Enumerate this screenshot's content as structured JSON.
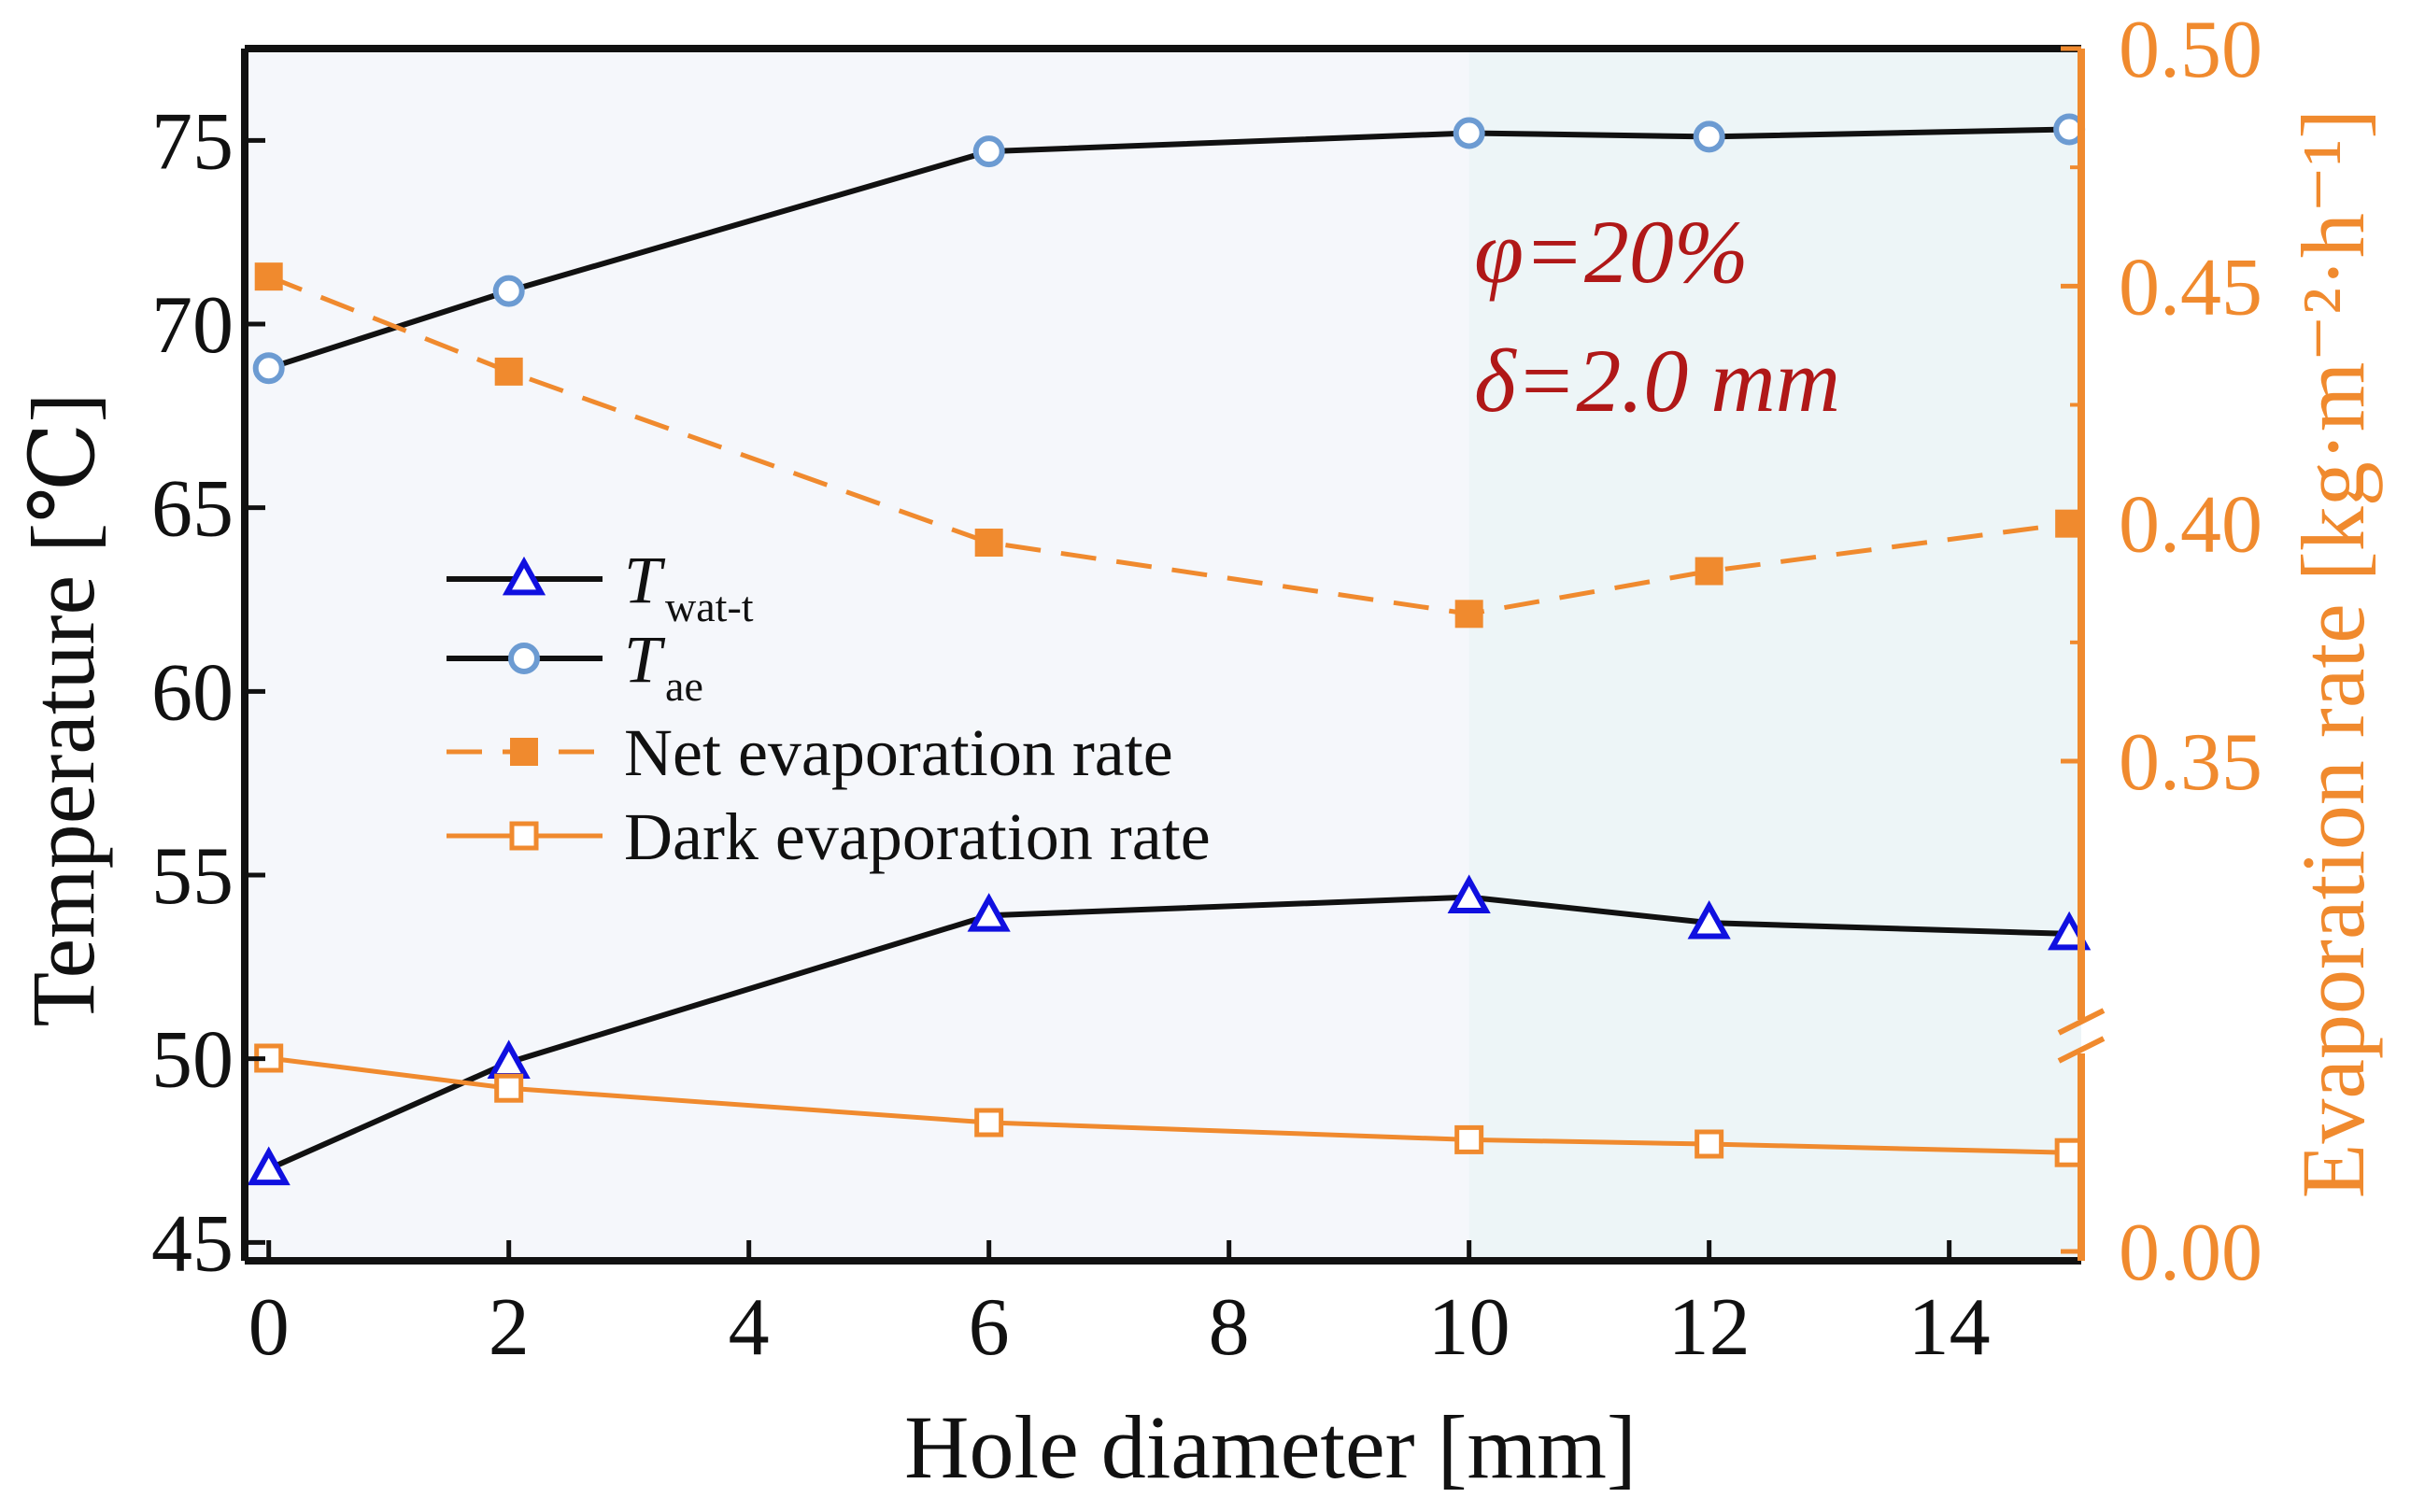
{
  "chart_data": {
    "type": "line",
    "x": [
      0,
      2,
      6,
      10,
      12,
      15
    ],
    "xlabel": "Hole diameter [mm]",
    "xlim": [
      -0.2,
      15.1
    ],
    "xticks": [
      0,
      2,
      4,
      6,
      8,
      10,
      12,
      14
    ],
    "ylabel_left": "Temperature [℃]",
    "ylim_left": [
      44.5,
      77.5
    ],
    "yticks_left": [
      45,
      50,
      55,
      60,
      65,
      70,
      75
    ],
    "ylabel_right": "Evaporation rate [kg·m⁻²·h⁻¹]",
    "yticks_right": [
      "0.00",
      "0.35",
      "0.40",
      "0.45",
      "0.50"
    ],
    "right_axis_break": "between 0.00 and 0.35",
    "shaded_region_x": [
      10,
      15.1
    ],
    "series": [
      {
        "name": "T",
        "subscript": "wat-t",
        "axis": "left",
        "marker": "open-triangle",
        "line": "solid",
        "color": "#111111",
        "marker_color": "#1010E0",
        "values": [
          47.0,
          49.9,
          53.9,
          54.4,
          53.7,
          53.4
        ]
      },
      {
        "name": "T",
        "subscript": "ae",
        "axis": "left",
        "marker": "open-circle",
        "line": "solid",
        "color": "#111111",
        "marker_color": "#6C9BD2",
        "values": [
          68.8,
          70.9,
          74.7,
          75.2,
          75.1,
          75.3
        ]
      },
      {
        "name": "Net evaporation rate",
        "axis": "right",
        "marker": "filled-square",
        "line": "dashed",
        "color": "#F08A2E",
        "values": [
          0.452,
          0.432,
          0.396,
          0.381,
          0.39,
          0.4
        ]
      },
      {
        "name": "Dark  evaporation rate",
        "axis": "right",
        "marker": "open-square",
        "line": "solid",
        "color": "#F08A2E",
        "values": [
          0.045,
          0.038,
          0.03,
          0.026,
          0.025,
          0.023
        ]
      }
    ],
    "annotations": [
      "φ=20%",
      "δ=2.0 mm"
    ]
  },
  "legend": {
    "items": [
      {
        "main": "T",
        "sub": "wat-t"
      },
      {
        "main": "T",
        "sub": "ae"
      },
      {
        "main": "Net evaporation rate",
        "sub": ""
      },
      {
        "main": "Dark  evaporation rate",
        "sub": ""
      }
    ]
  },
  "colors": {
    "axis_right": "#F08A2E",
    "annotation": "#B01818",
    "bg_left": "#F5F7FB",
    "bg_shaded": "#EDF5F7"
  }
}
